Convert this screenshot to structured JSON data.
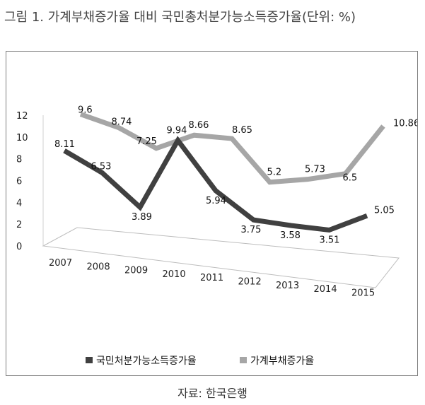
{
  "title": "그림 1. 가계부채증가율 대비 국민총처분가능소득증가율(단위: %)",
  "source": "자료: 한국은행",
  "chart_data": {
    "type": "line",
    "title": "그림 1. 가계부채증가율 대비 국민총처분가능소득증가율(단위: %)",
    "categories": [
      "2007",
      "2008",
      "2009",
      "2010",
      "2011",
      "2012",
      "2013",
      "2014",
      "2015"
    ],
    "y_ticks": [
      "0",
      "2",
      "4",
      "6",
      "8",
      "10",
      "12"
    ],
    "ylim": [
      0,
      12
    ],
    "grid": false,
    "legend_position": "bottom",
    "series": [
      {
        "name": "국민처분가능소득증가율",
        "color": "#404040",
        "values": [
          8.11,
          6.53,
          3.89,
          9.94,
          5.94,
          3.75,
          3.58,
          3.51,
          5.05
        ],
        "labels": [
          "8.11",
          "6.53",
          "3.89",
          "9.94",
          "5.94",
          "3.75",
          "3.58",
          "3.51",
          "5.05"
        ]
      },
      {
        "name": "가계부채증가율",
        "color": "#a6a6a6",
        "values": [
          9.6,
          8.74,
          7.25,
          8.66,
          8.65,
          5.2,
          5.73,
          6.5,
          10.86
        ],
        "labels": [
          "9.6",
          "8.74",
          "7.25",
          "8.66",
          "8.65",
          "5.2",
          "5.73",
          "6.5",
          "10.86"
        ]
      }
    ]
  }
}
